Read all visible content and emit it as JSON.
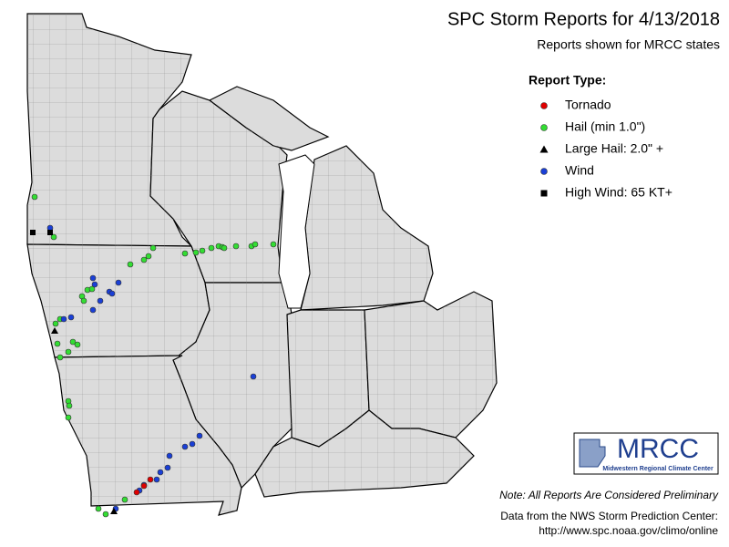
{
  "header": {
    "title": "SPC Storm Reports for 4/13/2018",
    "subtitle": "Reports shown for MRCC states"
  },
  "legend": {
    "title": "Report Type:",
    "items": [
      {
        "label": "Tornado",
        "shape": "circle",
        "color": "#e00000"
      },
      {
        "label": "Hail (min 1.0\")",
        "shape": "circle",
        "color": "#33dd33"
      },
      {
        "label": "Large Hail: 2.0\" +",
        "shape": "triangle",
        "color": "#000000"
      },
      {
        "label": "Wind",
        "shape": "circle",
        "color": "#1a3fd6"
      },
      {
        "label": "High Wind: 65 KT+",
        "shape": "square",
        "color": "#000000"
      }
    ]
  },
  "logo": {
    "name": "MRCC",
    "full_name": "Midwestern Regional Climate Center"
  },
  "note": "Note: All Reports Are Considered Preliminary",
  "credit": {
    "line1": "Data from the NWS Storm Prediction Center:",
    "line2": "http://www.spc.noaa.gov/climo/online"
  }
}
